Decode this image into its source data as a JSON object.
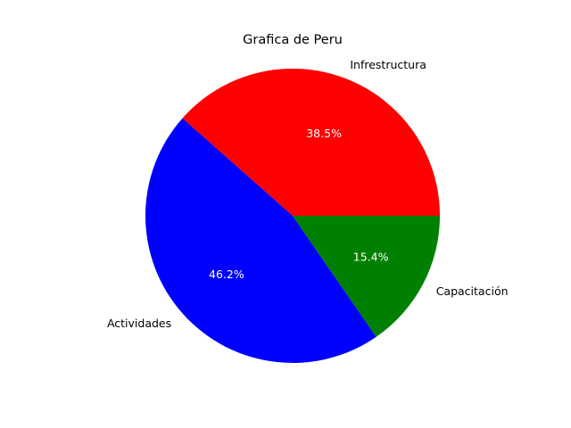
{
  "chart_data": {
    "type": "pie",
    "title": "Grafica de Peru",
    "categories": [
      "Infrestructura",
      "Actividades",
      "Capacitación"
    ],
    "values": [
      38.5,
      46.2,
      15.4
    ],
    "percent_labels": [
      "38.5%",
      "46.2%",
      "15.4%"
    ],
    "colors": [
      "#ff0000",
      "#0000ff",
      "#008000"
    ],
    "start_angle_deg": 0,
    "direction": "counterclockwise",
    "legend": "none"
  }
}
